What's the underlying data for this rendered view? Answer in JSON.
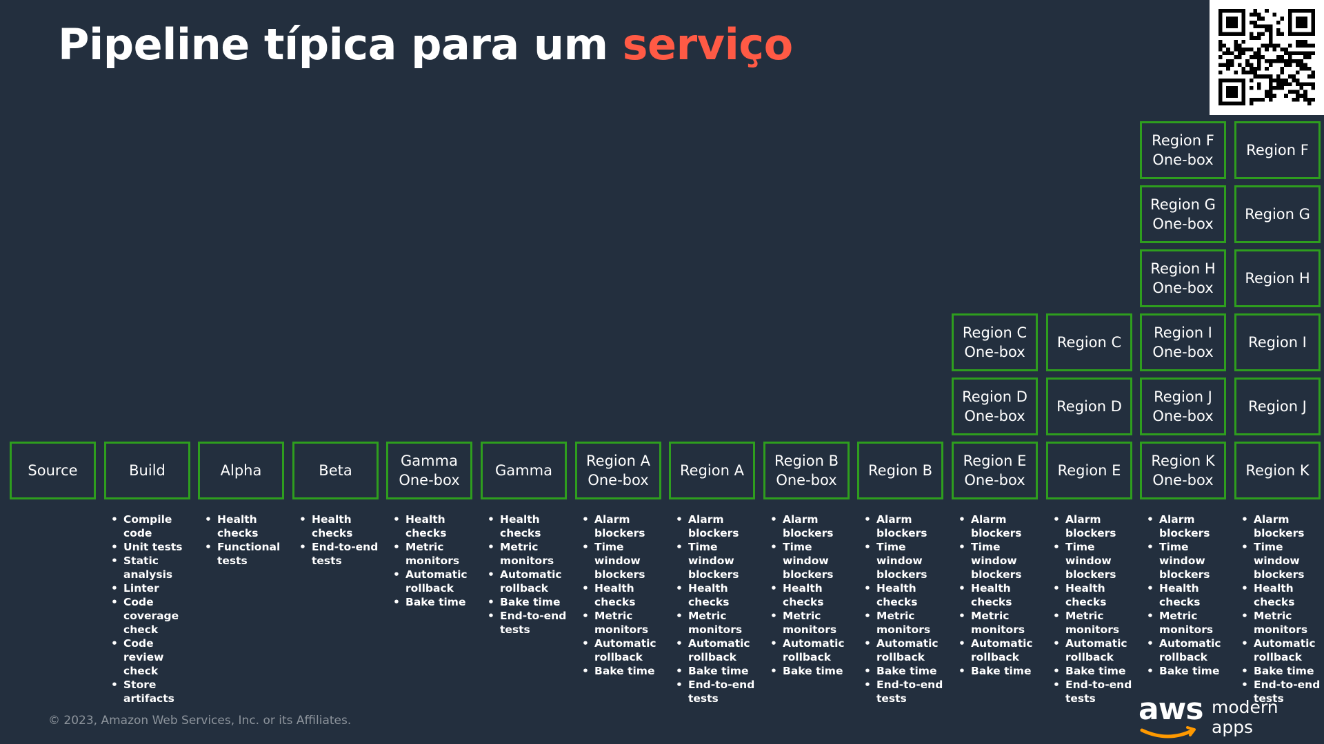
{
  "title": {
    "main": "Pipeline típica para um ",
    "accent": "serviço"
  },
  "accent_color": "#ff5a45",
  "box_border_color": "#2e9e1e",
  "stages": [
    {
      "label": "Source",
      "checks": []
    },
    {
      "label": "Build",
      "checks": [
        "Compile code",
        "Unit tests",
        "Static analysis",
        "Linter",
        "Code coverage check",
        "Code review check",
        "Store artifacts"
      ]
    },
    {
      "label": "Alpha",
      "checks": [
        "Health checks",
        "Functional tests"
      ]
    },
    {
      "label": "Beta",
      "checks": [
        "Health checks",
        "End-to-end tests"
      ]
    },
    {
      "label": "Gamma\nOne-box",
      "checks": [
        "Health checks",
        "Metric monitors",
        "Automatic rollback",
        "Bake time"
      ]
    },
    {
      "label": "Gamma",
      "checks": [
        "Health checks",
        "Metric monitors",
        "Automatic rollback",
        "Bake time",
        "End-to-end tests"
      ]
    },
    {
      "label": "Region A\nOne-box",
      "checks": [
        "Alarm blockers",
        "Time window blockers",
        "Health checks",
        "Metric monitors",
        "Automatic rollback",
        "Bake time"
      ]
    },
    {
      "label": "Region A",
      "checks": [
        "Alarm blockers",
        "Time window blockers",
        "Health checks",
        "Metric monitors",
        "Automatic rollback",
        "Bake time",
        "End-to-end tests"
      ]
    },
    {
      "label": "Region B\nOne-box",
      "checks": [
        "Alarm blockers",
        "Time window blockers",
        "Health checks",
        "Metric monitors",
        "Automatic rollback",
        "Bake time"
      ]
    },
    {
      "label": "Region B",
      "checks": [
        "Alarm blockers",
        "Time window blockers",
        "Health checks",
        "Metric monitors",
        "Automatic rollback",
        "Bake time",
        "End-to-end tests"
      ]
    },
    {
      "label": "Region E\nOne-box",
      "checks": [
        "Alarm blockers",
        "Time window blockers",
        "Health checks",
        "Metric monitors",
        "Automatic rollback",
        "Bake time"
      ]
    },
    {
      "label": "Region E",
      "checks": [
        "Alarm blockers",
        "Time window blockers",
        "Health checks",
        "Metric monitors",
        "Automatic rollback",
        "Bake time",
        "End-to-end tests"
      ]
    },
    {
      "label": "Region K\nOne-box",
      "checks": [
        "Alarm blockers",
        "Time window blockers",
        "Health checks",
        "Metric monitors",
        "Automatic rollback",
        "Bake time"
      ]
    },
    {
      "label": "Region K",
      "checks": [
        "Alarm blockers",
        "Time window blockers",
        "Health checks",
        "Metric monitors",
        "Automatic rollback",
        "Bake time",
        "End-to-end tests"
      ]
    }
  ],
  "parallel_regions": [
    {
      "stage": 10,
      "label": "Region D\nOne-box"
    },
    {
      "stage": 10,
      "label": "Region C\nOne-box"
    },
    {
      "stage": 11,
      "label": "Region D"
    },
    {
      "stage": 11,
      "label": "Region C"
    },
    {
      "stage": 12,
      "label": "Region J\nOne-box"
    },
    {
      "stage": 12,
      "label": "Region I\nOne-box"
    },
    {
      "stage": 12,
      "label": "Region H\nOne-box"
    },
    {
      "stage": 12,
      "label": "Region G\nOne-box"
    },
    {
      "stage": 12,
      "label": "Region F\nOne-box"
    },
    {
      "stage": 13,
      "label": "Region J"
    },
    {
      "stage": 13,
      "label": "Region I"
    },
    {
      "stage": 13,
      "label": "Region H"
    },
    {
      "stage": 13,
      "label": "Region G"
    },
    {
      "stage": 13,
      "label": "Region F"
    }
  ],
  "footer": {
    "copyright": "© 2023, Amazon Web Services, Inc. or its Affiliates.",
    "logo_text": "aws",
    "logo_tagline": "modern\napps"
  },
  "icons": {
    "qr": "qr-code-icon",
    "aws_smile": "aws-smile-icon"
  }
}
